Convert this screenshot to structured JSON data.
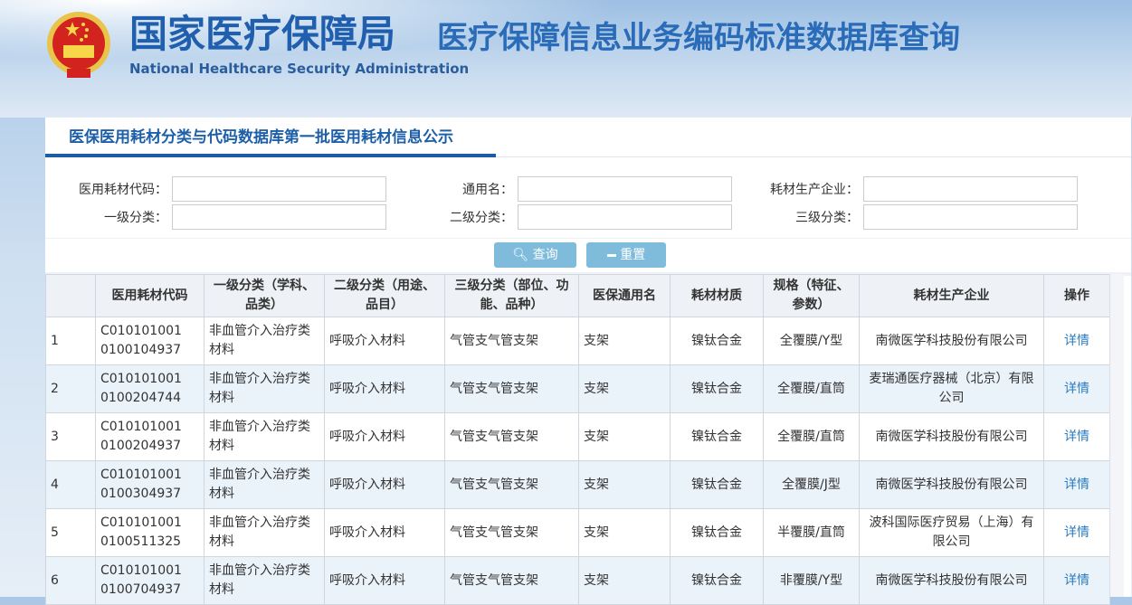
{
  "header": {
    "title_cn": "国家医疗保障局",
    "subtitle": "医疗保障信息业务编码标准数据库查询",
    "title_en": "National Healthcare Security Administration"
  },
  "tab": {
    "label": "医保医用耗材分类与代码数据库第一批医用耗材信息公示"
  },
  "form": {
    "fields": [
      {
        "label": "医用耗材代码：",
        "value": "",
        "placeholder": ""
      },
      {
        "label": "通用名：",
        "value": "",
        "placeholder": ""
      },
      {
        "label": "耗材生产企业：",
        "value": "",
        "placeholder": ""
      },
      {
        "label": "一级分类：",
        "value": "",
        "placeholder": ""
      },
      {
        "label": "二级分类：",
        "value": "",
        "placeholder": ""
      },
      {
        "label": "三级分类：",
        "value": "",
        "placeholder": ""
      }
    ],
    "search_label": "查询",
    "reset_label": "重置"
  },
  "table": {
    "headers": [
      "",
      "医用耗材代码",
      "一级分类（学科、品类）",
      "二级分类（用途、品目）",
      "三级分类（部位、功能、品种）",
      "医保通用名",
      "耗材材质",
      "规格（特征、参数）",
      "耗材生产企业",
      "操作"
    ],
    "rows": [
      {
        "no": "1",
        "code1": "C010101001",
        "code2": "0100104937",
        "l1": "非血管介入治疗类材料",
        "l2": "呼吸介入材料",
        "l3": "气管支气管支架",
        "name": "支架",
        "material": "镍钛合金",
        "spec": "全覆膜/Y型",
        "maker": "南微医学科技股份有限公司",
        "action": "详情"
      },
      {
        "no": "2",
        "code1": "C010101001",
        "code2": "0100204744",
        "l1": "非血管介入治疗类材料",
        "l2": "呼吸介入材料",
        "l3": "气管支气管支架",
        "name": "支架",
        "material": "镍钛合金",
        "spec": "全覆膜/直筒",
        "maker": "麦瑞通医疗器械（北京）有限公司",
        "action": "详情"
      },
      {
        "no": "3",
        "code1": "C010101001",
        "code2": "0100204937",
        "l1": "非血管介入治疗类材料",
        "l2": "呼吸介入材料",
        "l3": "气管支气管支架",
        "name": "支架",
        "material": "镍钛合金",
        "spec": "全覆膜/直筒",
        "maker": "南微医学科技股份有限公司",
        "action": "详情"
      },
      {
        "no": "4",
        "code1": "C010101001",
        "code2": "0100304937",
        "l1": "非血管介入治疗类材料",
        "l2": "呼吸介入材料",
        "l3": "气管支气管支架",
        "name": "支架",
        "material": "镍钛合金",
        "spec": "全覆膜/J型",
        "maker": "南微医学科技股份有限公司",
        "action": "详情"
      },
      {
        "no": "5",
        "code1": "C010101001",
        "code2": "0100511325",
        "l1": "非血管介入治疗类材料",
        "l2": "呼吸介入材料",
        "l3": "气管支气管支架",
        "name": "支架",
        "material": "镍钛合金",
        "spec": "半覆膜/直筒",
        "maker": "波科国际医疗贸易（上海）有限公司",
        "action": "详情"
      },
      {
        "no": "6",
        "code1": "C010101001",
        "code2": "0100704937",
        "l1": "非血管介入治疗类材料",
        "l2": "呼吸介入材料",
        "l3": "气管支气管支架",
        "name": "支架",
        "material": "镍钛合金",
        "spec": "非覆膜/Y型",
        "maker": "南微医学科技股份有限公司",
        "action": "详情"
      }
    ]
  }
}
